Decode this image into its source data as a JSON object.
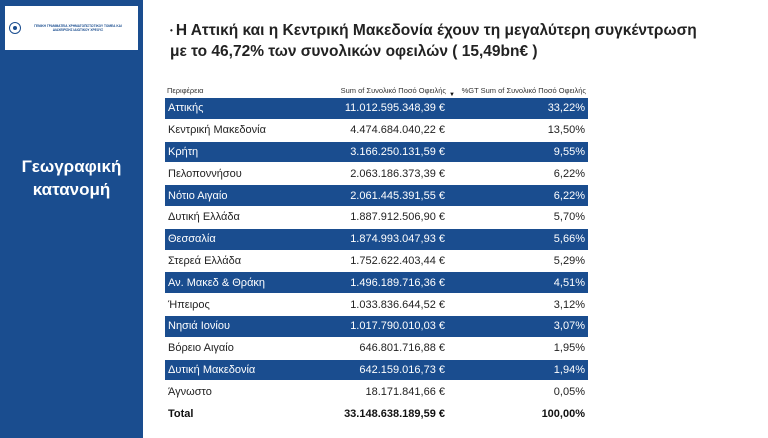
{
  "logo": {
    "text": "ΓΕΝΙΚΗ ΓΡΑΜΜΑΤΕΙΑ ΧΡΗΜΑΤΟΠΙΣΤΩΤΙΚΟΥ ΤΟΜΕΑ ΚΑΙ ΔΙΑΧΕΙΡΙΣΗΣ ΙΔΙΩΤΙΚΟΥ ΧΡΕΟΥΣ"
  },
  "sidebar": {
    "title_line1": "Γεωγραφική",
    "title_line2": "κατανομή"
  },
  "headline": {
    "line1": "Η Αττική και η Κεντρική Μακεδονία  έχουν τη μεγαλύτερη συγκέντρωση",
    "line2": "με το 46,72% των συνολικών οφειλών ( 15,49bn€ )"
  },
  "table": {
    "columns": [
      "Περιφέρεια",
      "Sum of Συνολικό Ποσό Οφειλής",
      "%GT Sum of Συνολικό Ποσό Οφειλής"
    ],
    "rows": [
      [
        "Αττικής",
        "11.012.595.348,39 €",
        "33,22%"
      ],
      [
        "Κεντρική Μακεδονία",
        "4.474.684.040,22 €",
        "13,50%"
      ],
      [
        "Κρήτη",
        "3.166.250.131,59 €",
        "9,55%"
      ],
      [
        "Πελοποννήσου",
        "2.063.186.373,39 €",
        "6,22%"
      ],
      [
        "Νότιο Αιγαίο",
        "2.061.445.391,55 €",
        "6,22%"
      ],
      [
        "Δυτική Ελλάδα",
        "1.887.912.506,90 €",
        "5,70%"
      ],
      [
        "Θεσσαλία",
        "1.874.993.047,93 €",
        "5,66%"
      ],
      [
        "Στερεά Ελλάδα",
        "1.752.622.403,44 €",
        "5,29%"
      ],
      [
        "Αν. Μακεδ & Θράκη",
        "1.496.189.716,36 €",
        "4,51%"
      ],
      [
        "Ήπειρος",
        "1.033.836.644,52 €",
        "3,12%"
      ],
      [
        "Νησιά Ιονίου",
        "1.017.790.010,03 €",
        "3,07%"
      ],
      [
        "Βόρειο Αιγαίο",
        "646.801.716,88 €",
        "1,95%"
      ],
      [
        "Δυτική Μακεδονία",
        "642.159.016,73 €",
        "1,94%"
      ],
      [
        "Άγνωστο",
        "18.171.841,66 €",
        "0,05%"
      ]
    ],
    "total": [
      "Total",
      "33.148.638.189,59 €",
      "100,00%"
    ]
  },
  "colors": {
    "brand_blue": "#1a4d8f",
    "band_text": "#ffffff"
  },
  "icons": {
    "sort": "sort-descending-icon"
  }
}
